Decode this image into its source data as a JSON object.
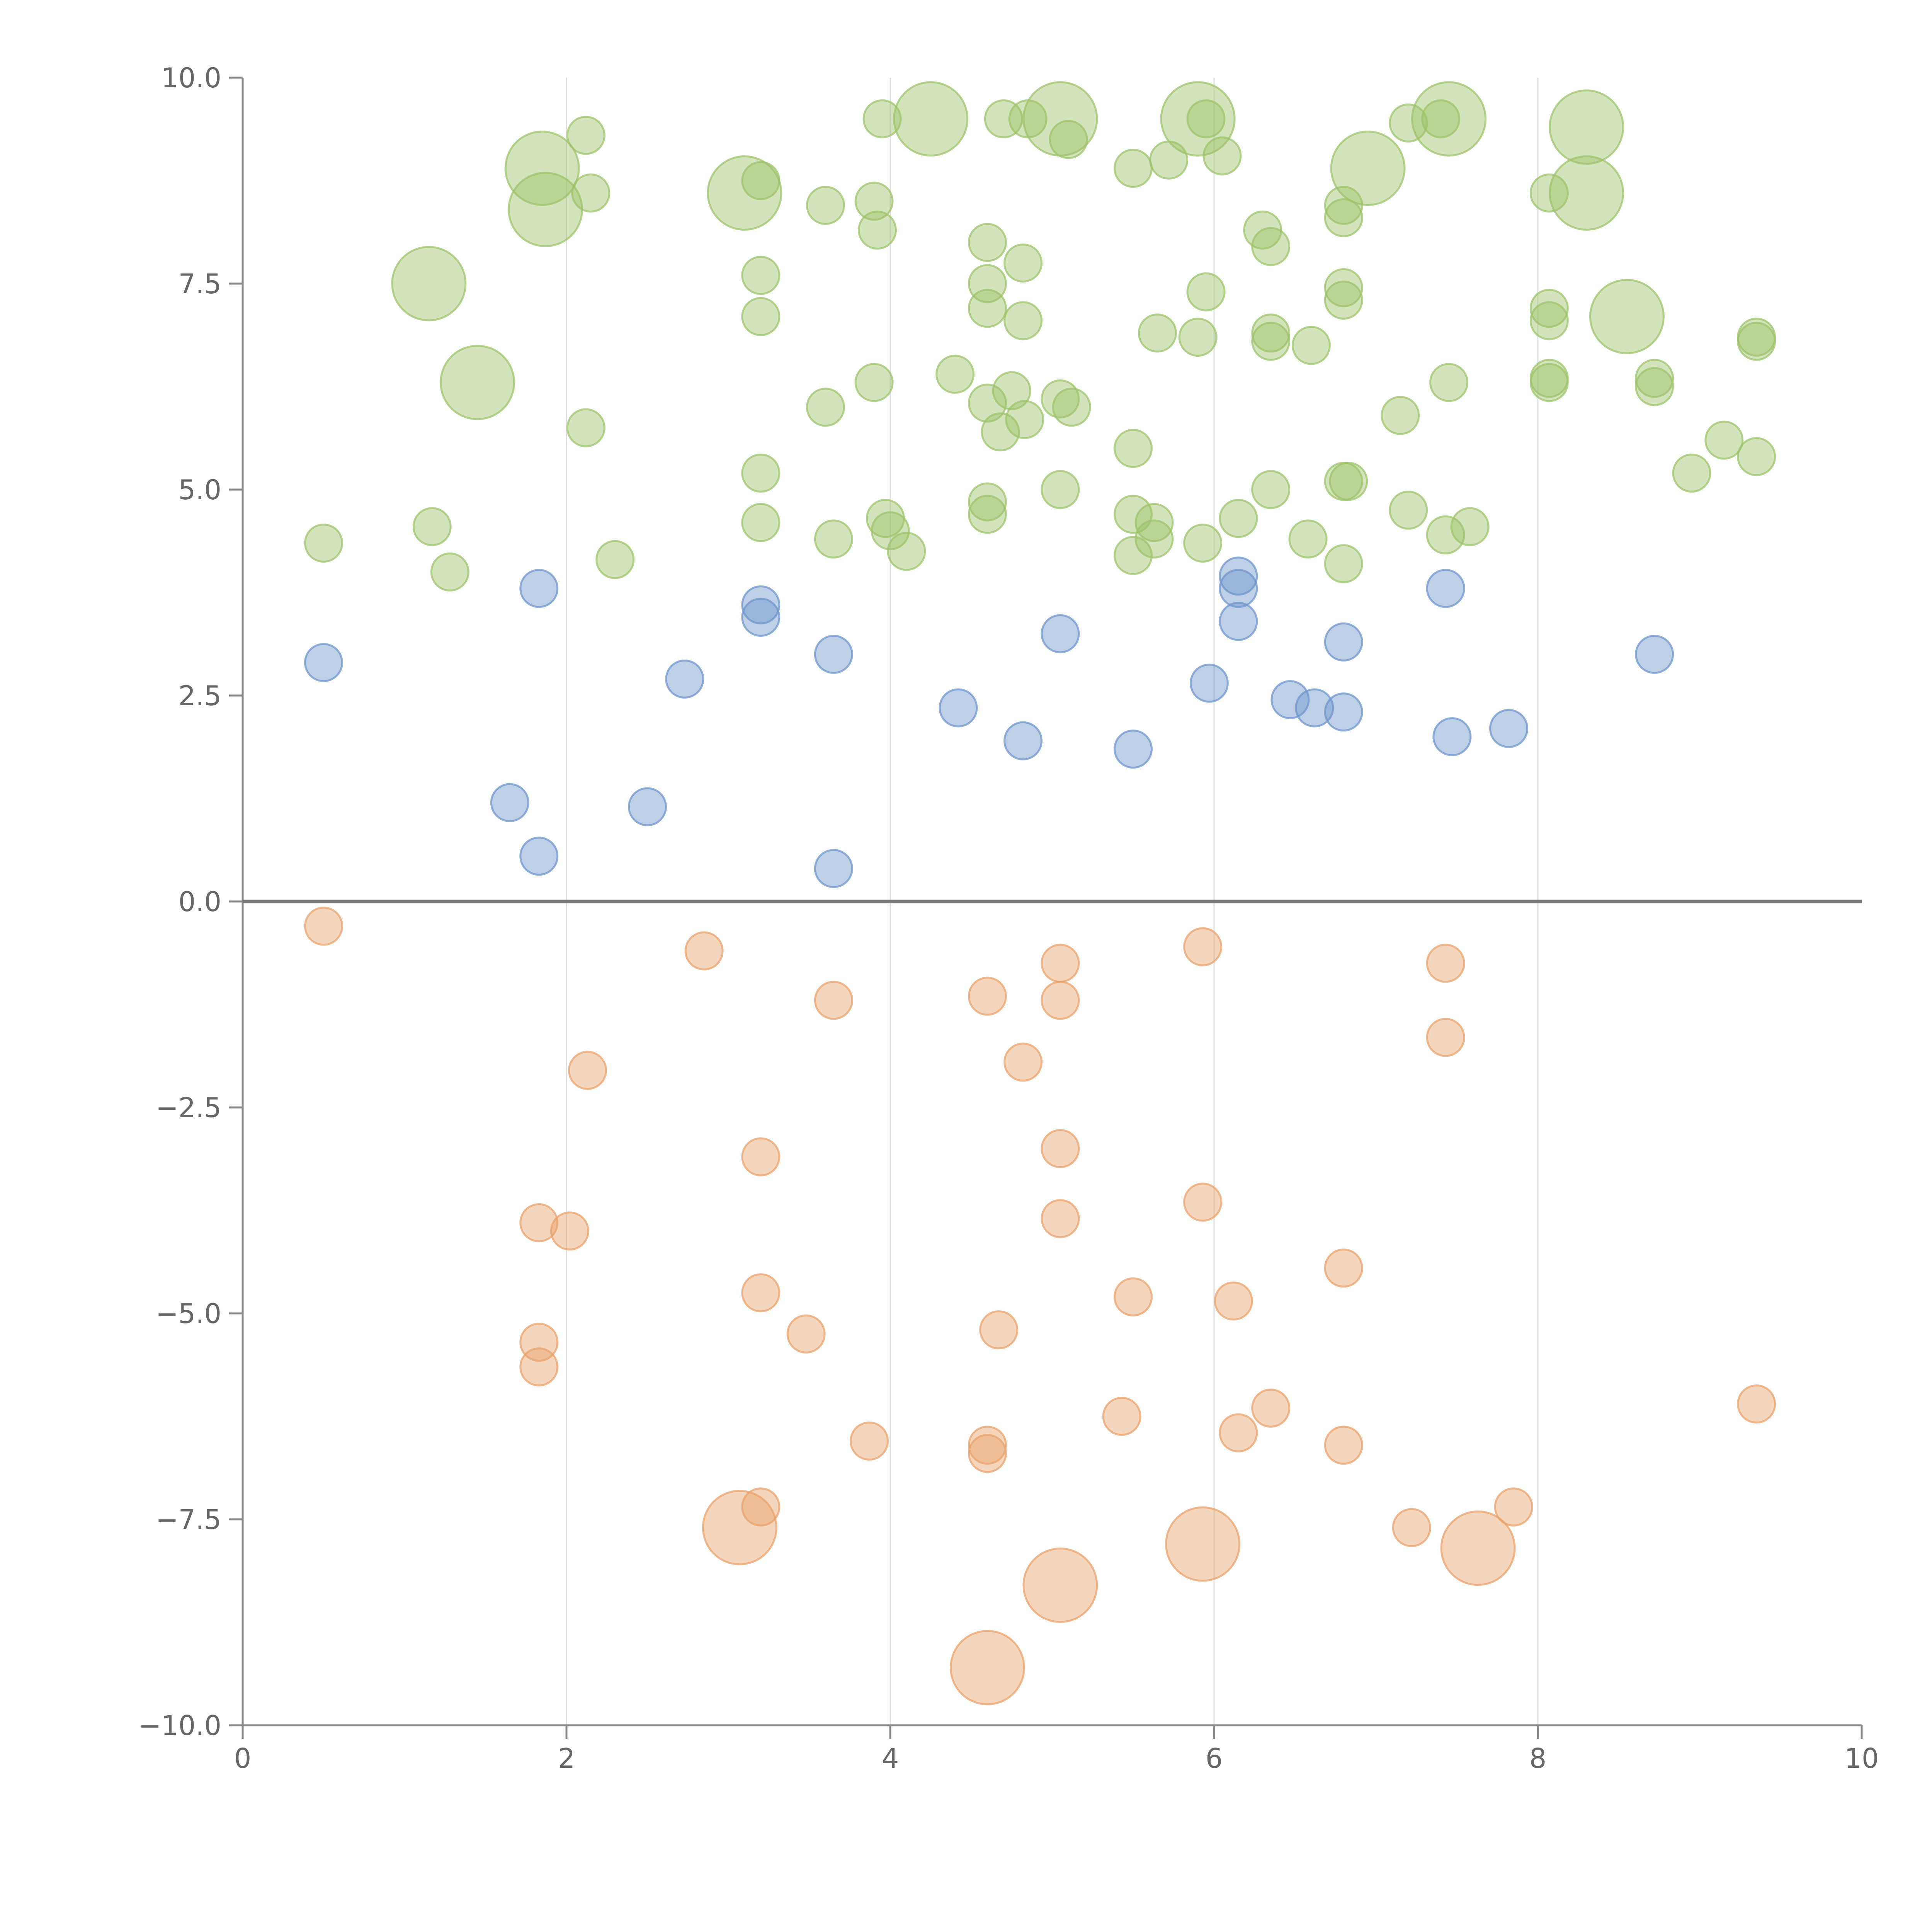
{
  "chart_data": {
    "type": "scatter",
    "xlim": [
      0,
      10
    ],
    "ylim": [
      -10,
      10
    ],
    "x_ticks": [
      "0",
      "2",
      "4",
      "6",
      "8",
      "10"
    ],
    "y_ticks": [
      "−10.0",
      "−7.5",
      "−5.0",
      "−2.5",
      "0.0",
      "2.5",
      "5.0",
      "7.5",
      "10.0"
    ],
    "grid": "vertical lines at x ticks",
    "reference_line_y": 0,
    "colors": {
      "green": "#9dc36b",
      "blue": "#6f95cc",
      "orange": "#e8a26b"
    },
    "series": [
      {
        "color_key": "green",
        "points": [
          [
            1.85,
            8.9,
            2
          ],
          [
            1.87,
            8.4,
            2
          ],
          [
            1.15,
            7.5,
            2
          ],
          [
            1.45,
            6.3,
            2
          ],
          [
            3.1,
            8.6,
            2
          ],
          [
            4.25,
            9.5,
            2
          ],
          [
            5.05,
            9.5,
            2
          ],
          [
            5.9,
            9.5,
            2
          ],
          [
            6.95,
            8.9,
            2
          ],
          [
            7.45,
            9.5,
            2
          ],
          [
            8.3,
            9.4,
            2
          ],
          [
            8.3,
            8.6,
            2
          ],
          [
            8.55,
            7.1,
            2
          ],
          [
            2.12,
            9.3,
            1
          ],
          [
            2.15,
            8.6,
            1
          ],
          [
            3.2,
            8.75,
            1
          ],
          [
            3.95,
            9.5,
            1
          ],
          [
            4.7,
            9.5,
            1
          ],
          [
            4.85,
            9.5,
            1
          ],
          [
            5.1,
            9.25,
            1
          ],
          [
            5.5,
            8.9,
            1
          ],
          [
            5.72,
            9.0,
            1
          ],
          [
            5.95,
            9.5,
            1
          ],
          [
            6.05,
            9.05,
            1
          ],
          [
            7.2,
            9.45,
            1
          ],
          [
            7.4,
            9.5,
            1
          ],
          [
            3.6,
            8.45,
            1
          ],
          [
            3.9,
            8.5,
            1
          ],
          [
            3.92,
            8.15,
            1
          ],
          [
            4.6,
            8.0,
            1
          ],
          [
            4.82,
            7.75,
            1
          ],
          [
            3.2,
            7.6,
            1
          ],
          [
            3.2,
            7.1,
            1
          ],
          [
            4.6,
            7.5,
            1
          ],
          [
            4.6,
            7.2,
            1
          ],
          [
            4.82,
            7.05,
            1
          ],
          [
            5.95,
            7.4,
            1
          ],
          [
            6.3,
            8.15,
            1
          ],
          [
            6.35,
            7.95,
            1
          ],
          [
            6.8,
            8.45,
            1
          ],
          [
            6.8,
            8.3,
            1
          ],
          [
            6.8,
            7.45,
            1
          ],
          [
            6.8,
            7.3,
            1
          ],
          [
            8.07,
            8.6,
            1
          ],
          [
            8.07,
            7.2,
            1
          ],
          [
            8.07,
            7.05,
            1
          ],
          [
            5.65,
            6.9,
            1
          ],
          [
            5.9,
            6.85,
            1
          ],
          [
            6.35,
            6.9,
            1
          ],
          [
            6.35,
            6.8,
            1
          ],
          [
            6.6,
            6.75,
            1
          ],
          [
            8.07,
            6.35,
            1
          ],
          [
            8.07,
            6.3,
            1
          ],
          [
            8.72,
            6.35,
            1
          ],
          [
            8.72,
            6.25,
            1
          ],
          [
            9.35,
            6.85,
            1
          ],
          [
            9.35,
            6.8,
            1
          ],
          [
            7.45,
            6.3,
            1
          ],
          [
            7.15,
            5.9,
            1
          ],
          [
            3.6,
            6.0,
            1
          ],
          [
            3.9,
            6.3,
            1
          ],
          [
            4.4,
            6.4,
            1
          ],
          [
            4.6,
            6.05,
            1
          ],
          [
            4.75,
            6.2,
            1
          ],
          [
            4.68,
            5.7,
            1
          ],
          [
            4.83,
            5.85,
            1
          ],
          [
            5.05,
            6.1,
            1
          ],
          [
            5.12,
            6.0,
            1
          ],
          [
            2.12,
            5.75,
            1
          ],
          [
            5.5,
            5.5,
            1
          ],
          [
            9.15,
            5.6,
            1
          ],
          [
            8.95,
            5.2,
            1
          ],
          [
            9.35,
            5.4,
            1
          ],
          [
            3.2,
            5.2,
            1
          ],
          [
            3.2,
            4.6,
            1
          ],
          [
            3.65,
            4.4,
            1
          ],
          [
            3.97,
            4.65,
            1
          ],
          [
            4.0,
            4.5,
            1
          ],
          [
            4.1,
            4.25,
            1
          ],
          [
            4.6,
            4.85,
            1
          ],
          [
            4.6,
            4.7,
            1
          ],
          [
            5.05,
            5.0,
            1
          ],
          [
            5.5,
            4.7,
            1
          ],
          [
            5.5,
            4.2,
            1
          ],
          [
            5.63,
            4.6,
            1
          ],
          [
            5.63,
            4.4,
            1
          ],
          [
            5.93,
            4.35,
            1
          ],
          [
            6.15,
            4.65,
            1
          ],
          [
            6.35,
            5.0,
            1
          ],
          [
            6.58,
            4.4,
            1
          ],
          [
            6.8,
            5.1,
            1
          ],
          [
            6.83,
            5.1,
            1
          ],
          [
            6.8,
            4.1,
            1
          ],
          [
            7.2,
            4.75,
            1
          ],
          [
            7.43,
            4.45,
            1
          ],
          [
            7.58,
            4.55,
            1
          ],
          [
            0.5,
            4.35,
            1
          ],
          [
            1.17,
            4.55,
            1
          ],
          [
            1.28,
            4.0,
            1
          ],
          [
            2.3,
            4.15,
            1
          ]
        ]
      },
      {
        "color_key": "blue",
        "points": [
          [
            0.5,
            2.9,
            1
          ],
          [
            1.83,
            3.8,
            1
          ],
          [
            1.65,
            1.2,
            1
          ],
          [
            1.83,
            0.55,
            1
          ],
          [
            2.5,
            1.15,
            1
          ],
          [
            2.73,
            2.7,
            1
          ],
          [
            3.2,
            3.6,
            1
          ],
          [
            3.2,
            3.45,
            1
          ],
          [
            3.65,
            3.0,
            1
          ],
          [
            3.65,
            0.4,
            1
          ],
          [
            4.42,
            2.35,
            1
          ],
          [
            4.82,
            1.95,
            1
          ],
          [
            5.05,
            3.25,
            1
          ],
          [
            5.5,
            1.85,
            1
          ],
          [
            5.97,
            2.65,
            1
          ],
          [
            6.15,
            3.95,
            1
          ],
          [
            6.15,
            3.8,
            1
          ],
          [
            6.15,
            3.4,
            1
          ],
          [
            6.47,
            2.45,
            1
          ],
          [
            6.62,
            2.35,
            1
          ],
          [
            6.8,
            2.3,
            1
          ],
          [
            6.8,
            3.15,
            1
          ],
          [
            7.43,
            3.8,
            1
          ],
          [
            7.47,
            2.0,
            1
          ],
          [
            7.82,
            2.1,
            1
          ],
          [
            8.72,
            3.0,
            1
          ]
        ]
      },
      {
        "color_key": "orange",
        "points": [
          [
            0.5,
            -0.3,
            1
          ],
          [
            2.85,
            -0.6,
            1
          ],
          [
            3.65,
            -1.2,
            1
          ],
          [
            4.6,
            -1.15,
            1
          ],
          [
            5.05,
            -0.75,
            1
          ],
          [
            5.05,
            -1.2,
            1
          ],
          [
            5.93,
            -0.55,
            1
          ],
          [
            7.43,
            -0.75,
            1
          ],
          [
            7.43,
            -1.65,
            1
          ],
          [
            2.13,
            -2.05,
            1
          ],
          [
            4.82,
            -1.95,
            1
          ],
          [
            3.2,
            -3.1,
            1
          ],
          [
            5.05,
            -3.0,
            1
          ],
          [
            5.93,
            -3.65,
            1
          ],
          [
            1.83,
            -3.9,
            1
          ],
          [
            2.02,
            -4.0,
            1
          ],
          [
            5.05,
            -3.85,
            1
          ],
          [
            6.8,
            -4.45,
            1
          ],
          [
            3.2,
            -4.75,
            1
          ],
          [
            5.5,
            -4.8,
            1
          ],
          [
            6.12,
            -4.85,
            1
          ],
          [
            1.83,
            -5.35,
            1
          ],
          [
            1.83,
            -5.65,
            1
          ],
          [
            3.48,
            -5.25,
            1
          ],
          [
            4.67,
            -5.2,
            1
          ],
          [
            3.87,
            -6.55,
            1
          ],
          [
            4.6,
            -6.6,
            1
          ],
          [
            4.6,
            -6.7,
            1
          ],
          [
            5.43,
            -6.25,
            1
          ],
          [
            6.15,
            -6.45,
            1
          ],
          [
            6.35,
            -6.15,
            1
          ],
          [
            6.8,
            -6.6,
            1
          ],
          [
            9.35,
            -6.1,
            1
          ],
          [
            3.2,
            -7.35,
            1
          ],
          [
            3.07,
            -7.6,
            2
          ],
          [
            4.6,
            -9.3,
            2
          ],
          [
            5.05,
            -8.3,
            2
          ],
          [
            5.93,
            -7.8,
            2
          ],
          [
            7.22,
            -7.6,
            1
          ],
          [
            7.63,
            -7.85,
            2
          ],
          [
            7.85,
            -7.35,
            1
          ]
        ]
      }
    ]
  }
}
